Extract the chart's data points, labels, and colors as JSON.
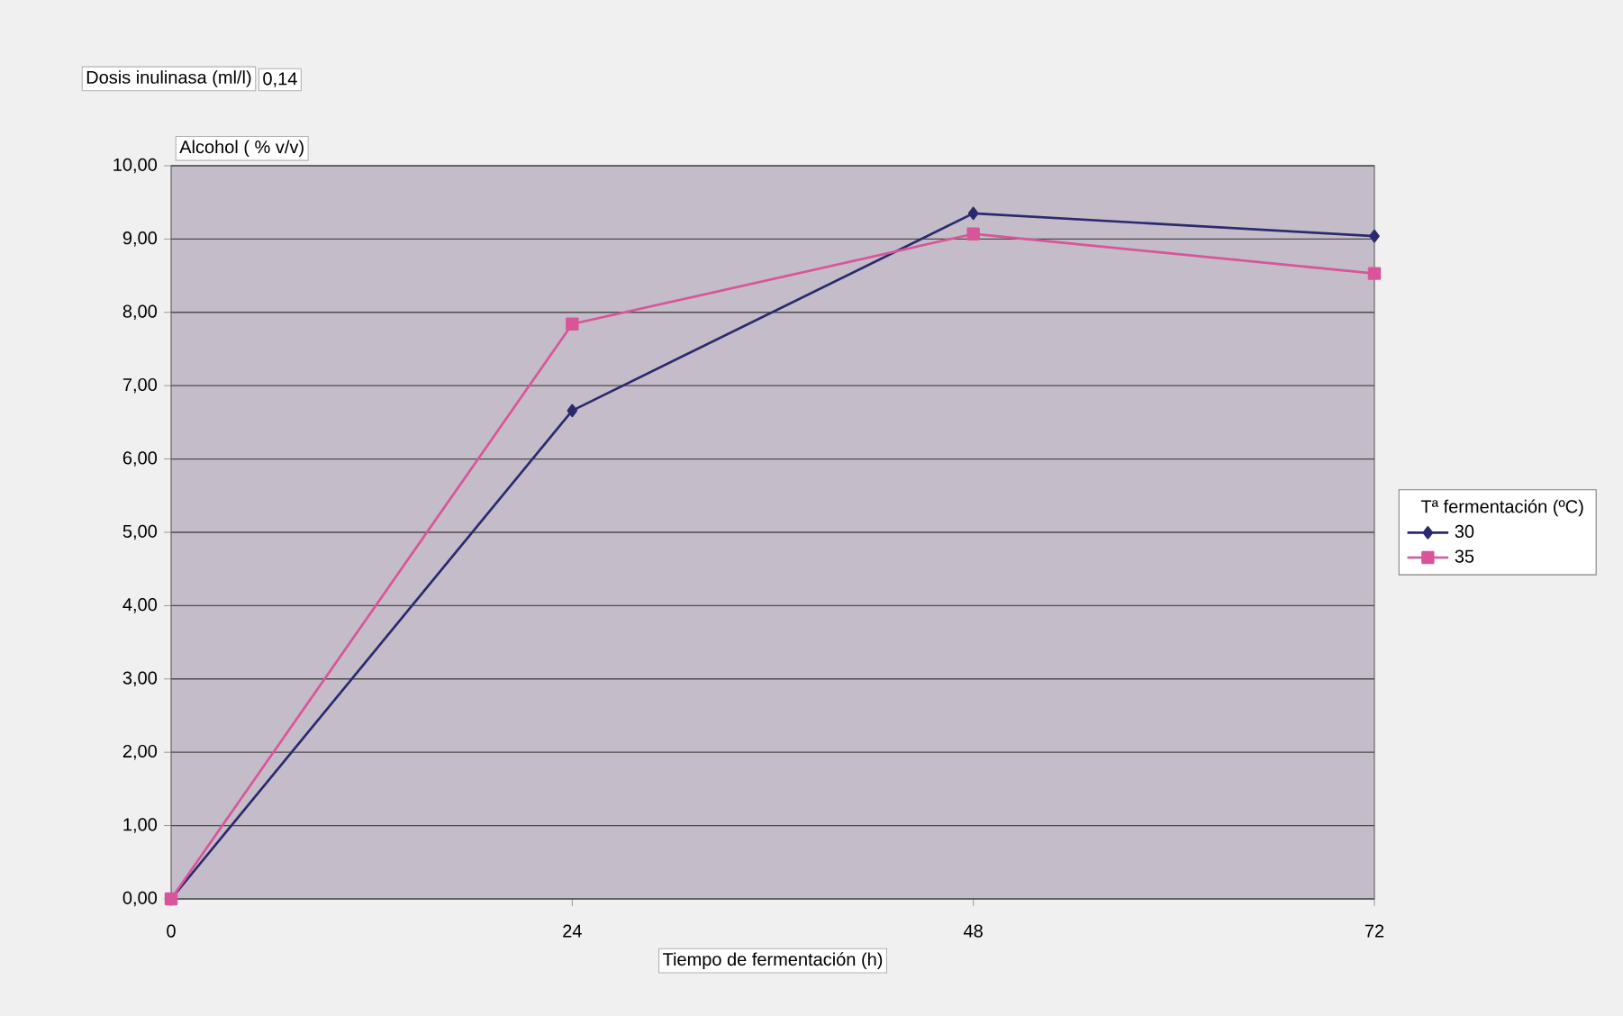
{
  "chart_data": {
    "type": "line",
    "title": "Dosis inulinasa (ml/l)",
    "annotations": [
      "0,14"
    ],
    "xlabel": "Tiempo de fermentación (h)",
    "ylabel": "Alcohol ( % v/v)",
    "legend_title": "Tª fermentación (ºC)",
    "x": [
      0,
      24,
      48,
      72
    ],
    "series": [
      {
        "name": "30",
        "color": "#2b2a6e",
        "marker": "diamond",
        "values": [
          0,
          6.66,
          9.35,
          9.04
        ]
      },
      {
        "name": "35",
        "color": "#d9559a",
        "marker": "square",
        "values": [
          0,
          7.84,
          9.07,
          8.53
        ]
      }
    ],
    "xlim": [
      0,
      72
    ],
    "xticks": [
      0,
      24,
      48,
      72
    ],
    "ylim": [
      0,
      10
    ],
    "yticks": [
      {
        "value": 0,
        "label": "0,00"
      },
      {
        "value": 1,
        "label": "1,00"
      },
      {
        "value": 2,
        "label": "2,00"
      },
      {
        "value": 3,
        "label": "3,00"
      },
      {
        "value": 4,
        "label": "4,00"
      },
      {
        "value": 5,
        "label": "5,00"
      },
      {
        "value": 6,
        "label": "6,00"
      },
      {
        "value": 7,
        "label": "7,00"
      },
      {
        "value": 8,
        "label": "8,00"
      },
      {
        "value": 9,
        "label": "9,00"
      },
      {
        "value": 10,
        "label": "10,00"
      }
    ],
    "grid": "y",
    "legend": "right",
    "line_style": "solid"
  }
}
